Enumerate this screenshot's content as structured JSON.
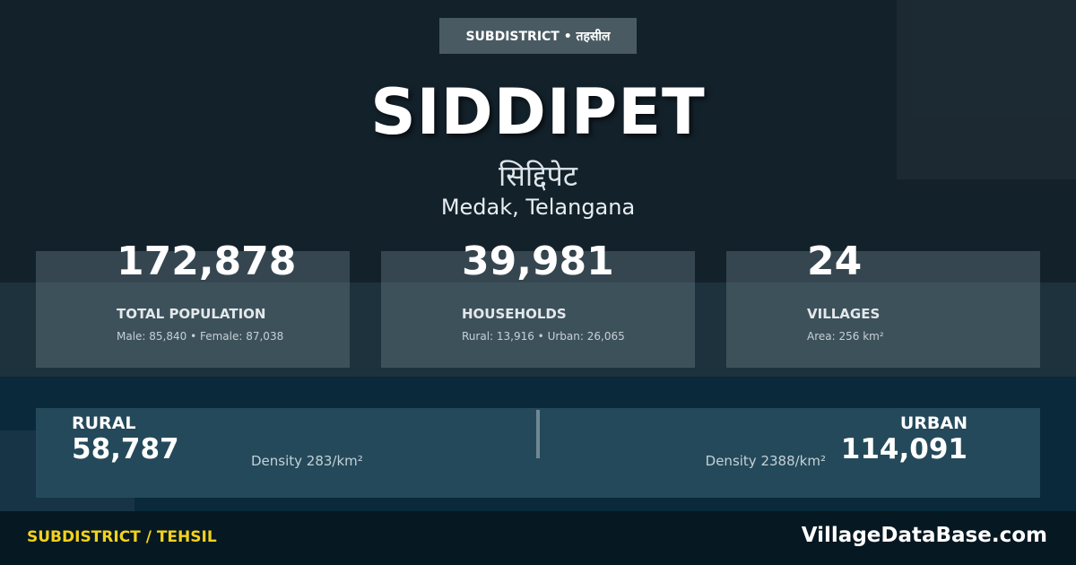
{
  "header": {
    "badge": "SUBDISTRICT • तहसील",
    "title": "SIDDIPET",
    "title_hindi": "सिद्दिपेट",
    "location": "Medak, Telangana"
  },
  "stats": [
    {
      "value": "172,878",
      "label": "TOTAL POPULATION",
      "detail": "Male: 85,840 • Female: 87,038"
    },
    {
      "value": "39,981",
      "label": "HOUSEHOLDS",
      "detail": "Rural: 13,916 • Urban: 26,065"
    },
    {
      "value": "24",
      "label": "VILLAGES",
      "detail": "Area: 256 km²"
    }
  ],
  "split": {
    "rural": {
      "label": "RURAL",
      "value": "58,787",
      "density": "Density 283/km²"
    },
    "urban": {
      "label": "URBAN",
      "value": "114,091",
      "density": "Density 2388/km²"
    }
  },
  "footer": {
    "category": "SUBDISTRICT / TEHSIL",
    "brand": "VillageDataBase.com"
  },
  "colors": {
    "accent": "#f2d21c",
    "background": "#13212b"
  }
}
